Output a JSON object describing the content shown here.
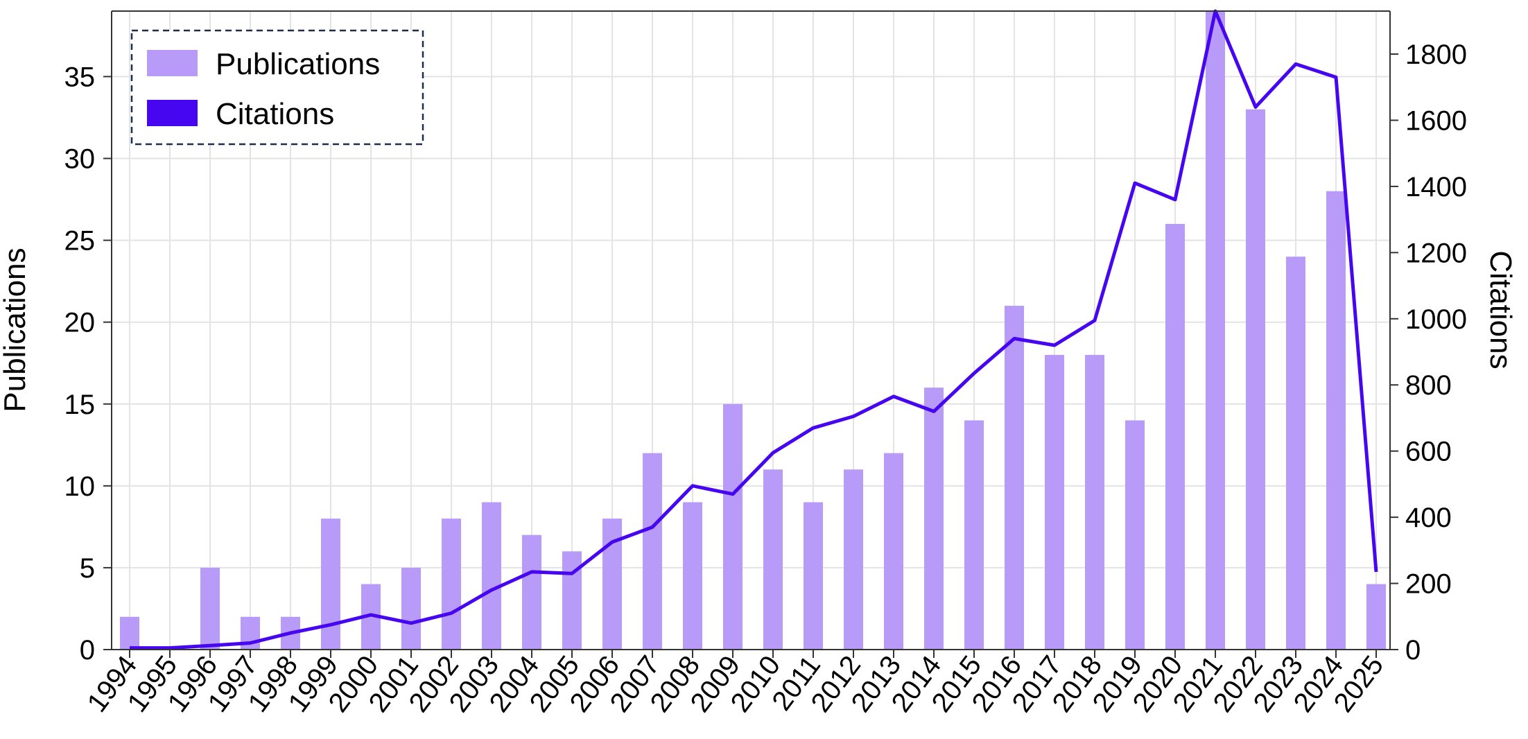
{
  "chart_data": {
    "type": "bar",
    "categories": [
      "1994",
      "1995",
      "1996",
      "1997",
      "1998",
      "1999",
      "2000",
      "2001",
      "2002",
      "2003",
      "2004",
      "2005",
      "2006",
      "2007",
      "2008",
      "2009",
      "2010",
      "2011",
      "2012",
      "2013",
      "2014",
      "2015",
      "2016",
      "2017",
      "2018",
      "2019",
      "2020",
      "2021",
      "2022",
      "2023",
      "2024",
      "2025"
    ],
    "series": [
      {
        "name": "Publications",
        "type": "bar",
        "axis": "left",
        "color": "#b89af9",
        "values": [
          2,
          0,
          5,
          2,
          2,
          8,
          4,
          5,
          8,
          9,
          7,
          6,
          8,
          12,
          9,
          15,
          11,
          9,
          11,
          12,
          16,
          14,
          21,
          18,
          18,
          14,
          26,
          39,
          33,
          24,
          28,
          4
        ]
      },
      {
        "name": "Citations",
        "type": "line",
        "axis": "right",
        "color": "#4607f0",
        "values": [
          5,
          5,
          12,
          20,
          50,
          75,
          105,
          80,
          110,
          180,
          235,
          230,
          325,
          370,
          495,
          470,
          595,
          670,
          705,
          765,
          720,
          835,
          940,
          920,
          995,
          1410,
          1360,
          1930,
          1640,
          1770,
          1730,
          235
        ]
      }
    ],
    "xlabel": "",
    "ylabel": "Publications",
    "ylabel_right": "Citations",
    "ylim": [
      0,
      39
    ],
    "ylim_right": [
      0,
      1930
    ],
    "yticks": [
      0,
      5,
      10,
      15,
      20,
      25,
      30,
      35
    ],
    "yticks_right": [
      0,
      200,
      400,
      600,
      800,
      1000,
      1200,
      1400,
      1600,
      1800
    ],
    "grid": true,
    "legend_position": "top-left"
  }
}
